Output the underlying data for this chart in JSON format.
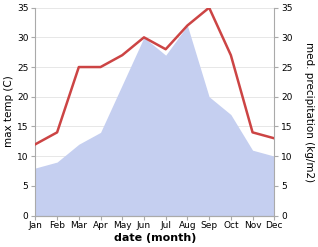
{
  "months": [
    "Jan",
    "Feb",
    "Mar",
    "Apr",
    "May",
    "Jun",
    "Jul",
    "Aug",
    "Sep",
    "Oct",
    "Nov",
    "Dec"
  ],
  "temperature": [
    12,
    14,
    25,
    25,
    27,
    30,
    28,
    32,
    35,
    27,
    14,
    13
  ],
  "precipitation": [
    8,
    9,
    12,
    14,
    22,
    30,
    27,
    32,
    20,
    17,
    11,
    10
  ],
  "temp_color": "#cc4444",
  "precip_color": "#c5cff0",
  "ylim_left": [
    0,
    35
  ],
  "ylim_right": [
    0,
    35
  ],
  "yticks": [
    0,
    5,
    10,
    15,
    20,
    25,
    30,
    35
  ],
  "ylabel_left": "max temp (C)",
  "ylabel_right": "med. precipitation (kg/m2)",
  "xlabel": "date (month)",
  "spine_color": "#aaaaaa",
  "grid_color": "#dddddd",
  "tick_fontsize": 6.5,
  "label_fontsize": 7.5,
  "xlabel_fontsize": 8,
  "linewidth": 1.8
}
